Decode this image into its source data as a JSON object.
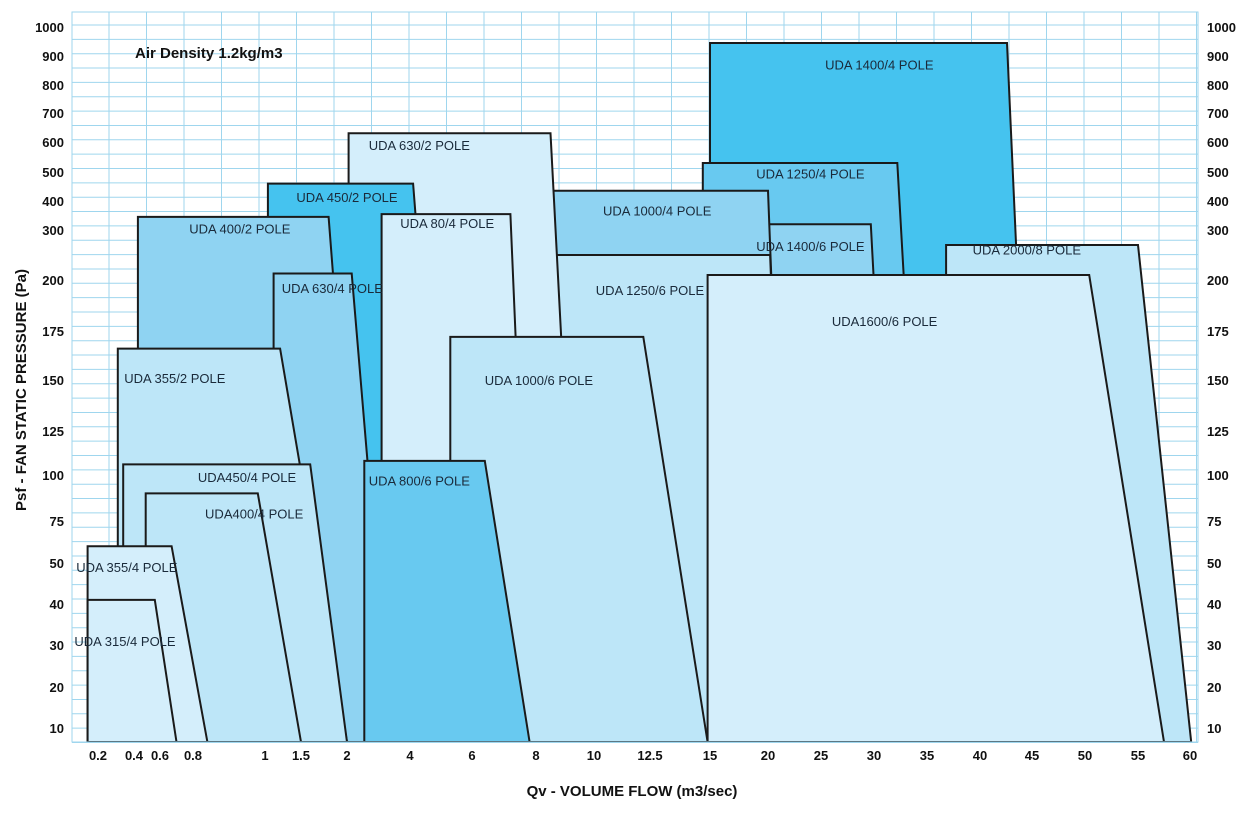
{
  "chart_data": {
    "type": "area",
    "title": "Air Density 1.2kg/m3",
    "xlabel": "Qv - VOLUME FLOW (m3/sec)",
    "ylabel": "Psf - FAN STATIC PRESSURE (Pa)",
    "x_ticks": [
      "0.2",
      "0.4",
      "0.6",
      "0.8",
      "1",
      "1.5",
      "2",
      "4",
      "6",
      "8",
      "10",
      "12.5",
      "15",
      "20",
      "25",
      "30",
      "35",
      "40",
      "45",
      "50",
      "55",
      "60"
    ],
    "y_ticks": [
      "10",
      "20",
      "30",
      "40",
      "50",
      "75",
      "100",
      "125",
      "150",
      "175",
      "200",
      "300",
      "400",
      "500",
      "600",
      "700",
      "800",
      "900",
      "1000"
    ],
    "grid": true,
    "colors": {
      "light": "#d4eefb",
      "pale": "#bde6f8",
      "medium": "#8fd3f2",
      "strong": "#68c9f0",
      "deep": "#45c3ef",
      "grid": "#9fd6ee",
      "outline": "#1a1a1a"
    },
    "series": [
      {
        "name": "UDA 1400/4 POLE",
        "tone": "deep",
        "points": [
          [
            15,
            0
          ],
          [
            15,
            945
          ],
          [
            42.6,
            945
          ],
          [
            45.6,
            0
          ]
        ]
      },
      {
        "name": "UDA 1250/4 POLE",
        "tone": "strong",
        "points": [
          [
            14.7,
            0
          ],
          [
            14.7,
            530
          ],
          [
            32.2,
            530
          ],
          [
            35.3,
            0
          ]
        ]
      },
      {
        "name": "UDA 2000/8 POLE",
        "tone": "pale",
        "points": [
          [
            36.8,
            0
          ],
          [
            36.8,
            270
          ],
          [
            55,
            270
          ],
          [
            60.3,
            0
          ]
        ]
      },
      {
        "name": "UDA 1400/6 POLE",
        "tone": "medium",
        "points": [
          [
            15.7,
            0
          ],
          [
            15.7,
            320
          ],
          [
            29.7,
            320
          ],
          [
            32.3,
            0
          ]
        ]
      },
      {
        "name": "UDA 1000/4 POLE",
        "tone": "medium",
        "points": [
          [
            7.4,
            0
          ],
          [
            7.4,
            435
          ],
          [
            20,
            435
          ],
          [
            22,
            0
          ]
        ]
      },
      {
        "name": "UDA 1250/6 POLE",
        "tone": "pale",
        "points": [
          [
            6.4,
            0
          ],
          [
            6.4,
            250
          ],
          [
            20.2,
            250
          ],
          [
            22,
            0
          ]
        ]
      },
      {
        "name": "UDA1600/6 POLE",
        "tone": "light",
        "points": [
          [
            14.9,
            0
          ],
          [
            14.9,
            210
          ],
          [
            50.4,
            210
          ],
          [
            57.5,
            0
          ]
        ]
      },
      {
        "name": "UDA 630/2 POLE",
        "tone": "light",
        "points": [
          [
            2.05,
            0
          ],
          [
            2.05,
            630
          ],
          [
            8.5,
            630
          ],
          [
            9.6,
            0
          ]
        ]
      },
      {
        "name": "UDA 450/2 POLE",
        "tone": "deep",
        "points": [
          [
            1.04,
            0
          ],
          [
            1.04,
            460
          ],
          [
            4.1,
            460
          ],
          [
            5.5,
            0
          ]
        ]
      },
      {
        "name": "UDA 400/2 POLE",
        "tone": "medium",
        "points": [
          [
            0.43,
            0
          ],
          [
            0.43,
            345
          ],
          [
            1.8,
            345
          ],
          [
            2.7,
            0
          ]
        ]
      },
      {
        "name": "UDA 80/4 POLE",
        "tone": "light",
        "points": [
          [
            3.1,
            0
          ],
          [
            3.1,
            355
          ],
          [
            7.2,
            355
          ],
          [
            7.9,
            0
          ]
        ]
      },
      {
        "name": "UDA 630/4 POLE",
        "tone": "medium",
        "points": [
          [
            1.12,
            0
          ],
          [
            1.12,
            213
          ],
          [
            2.15,
            213
          ],
          [
            3.4,
            0
          ]
        ]
      },
      {
        "name": "UDA 1000/6 POLE",
        "tone": "pale",
        "points": [
          [
            5.3,
            0
          ],
          [
            5.3,
            172
          ],
          [
            12.2,
            172
          ],
          [
            14.9,
            0
          ]
        ]
      },
      {
        "name": "UDA 355/2 POLE",
        "tone": "pale",
        "points": [
          [
            0.31,
            0
          ],
          [
            0.31,
            166
          ],
          [
            1.21,
            166
          ],
          [
            2.0,
            0
          ]
        ]
      },
      {
        "name": "UDA 800/6 POLE",
        "tone": "strong",
        "points": [
          [
            2.55,
            0
          ],
          [
            2.55,
            108
          ],
          [
            6.4,
            108
          ],
          [
            7.8,
            0
          ]
        ]
      },
      {
        "name": "UDA450/4 POLE",
        "tone": "pale",
        "points": [
          [
            0.34,
            0
          ],
          [
            0.34,
            106
          ],
          [
            1.6,
            106
          ],
          [
            2.0,
            0
          ]
        ]
      },
      {
        "name": "UDA400/4 POLE",
        "tone": "pale",
        "points": [
          [
            0.49,
            0
          ],
          [
            0.49,
            90
          ],
          [
            0.98,
            90
          ],
          [
            1.5,
            0
          ]
        ]
      },
      {
        "name": "UDA 355/4 POLE",
        "tone": "light",
        "points": [
          [
            0.12,
            0
          ],
          [
            0.12,
            60
          ],
          [
            0.67,
            60
          ],
          [
            0.84,
            0
          ]
        ]
      },
      {
        "name": "UDA 315/4 POLE",
        "tone": "light",
        "points": [
          [
            0.12,
            0
          ],
          [
            0.12,
            41
          ],
          [
            0.56,
            41
          ],
          [
            0.7,
            0
          ]
        ]
      }
    ],
    "labels": [
      {
        "text": "UDA 1400/4 POLE",
        "x": 30.5,
        "y": 870
      },
      {
        "text": "UDA 1250/4 POLE",
        "x": 24,
        "y": 495
      },
      {
        "text": "UDA 1000/4 POLE",
        "x": 12.8,
        "y": 368
      },
      {
        "text": "UDA 1400/6 POLE",
        "x": 24,
        "y": 268
      },
      {
        "text": "UDA 2000/8 POLE",
        "x": 44.5,
        "y": 261
      },
      {
        "text": "UDA  1250/6 POLE",
        "x": 12.5,
        "y": 195
      },
      {
        "text": "UDA1600/6 POLE",
        "x": 31,
        "y": 180
      },
      {
        "text": "UDA 630/2 POLE",
        "x": 4.3,
        "y": 590
      },
      {
        "text": "UDA 450/2 POLE",
        "x": 2,
        "y": 413
      },
      {
        "text": "UDA 80/4 POLE",
        "x": 5.2,
        "y": 324
      },
      {
        "text": "UDA 400/2 POLE",
        "x": 0.93,
        "y": 305
      },
      {
        "text": "UDA 630/4 POLE",
        "x": 1.84,
        "y": 196
      },
      {
        "text": "UDA 355/2 POLE",
        "x": 0.69,
        "y": 151
      },
      {
        "text": "UDA 1000/6 POLE",
        "x": 8.1,
        "y": 150
      },
      {
        "text": "UDA450/4 POLE",
        "x": 0.95,
        "y": 99
      },
      {
        "text": "UDA 800/6 POLE",
        "x": 4.3,
        "y": 97
      },
      {
        "text": "UDA400/4 POLE",
        "x": 0.97,
        "y": 79
      },
      {
        "text": "UDA 355/4 POLE",
        "x": 0.36,
        "y": 49
      },
      {
        "text": "UDA 315/4 POLE",
        "x": 0.35,
        "y": 31
      }
    ]
  }
}
